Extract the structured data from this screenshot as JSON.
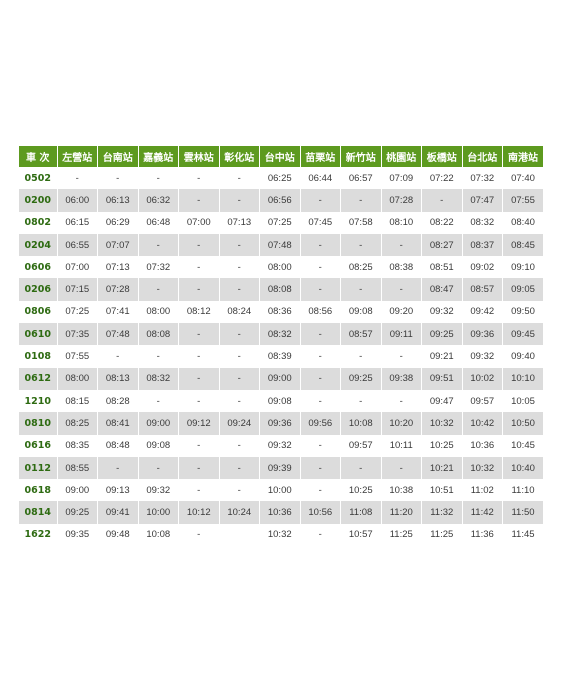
{
  "table": {
    "headers": [
      "車 次",
      "左營站",
      "台南站",
      "嘉義站",
      "雲林站",
      "彰化站",
      "台中站",
      "苗栗站",
      "新竹站",
      "桃園站",
      "板橋站",
      "台北站",
      "南港站"
    ],
    "rows": [
      [
        "0502",
        "-",
        "-",
        "-",
        "-",
        "-",
        "06:25",
        "06:44",
        "06:57",
        "07:09",
        "07:22",
        "07:32",
        "07:40"
      ],
      [
        "0200",
        "06:00",
        "06:13",
        "06:32",
        "-",
        "-",
        "06:56",
        "-",
        "-",
        "07:28",
        "-",
        "07:47",
        "07:55"
      ],
      [
        "0802",
        "06:15",
        "06:29",
        "06:48",
        "07:00",
        "07:13",
        "07:25",
        "07:45",
        "07:58",
        "08:10",
        "08:22",
        "08:32",
        "08:40"
      ],
      [
        "0204",
        "06:55",
        "07:07",
        "-",
        "-",
        "-",
        "07:48",
        "-",
        "-",
        "-",
        "08:27",
        "08:37",
        "08:45"
      ],
      [
        "0606",
        "07:00",
        "07:13",
        "07:32",
        "-",
        "-",
        "08:00",
        "-",
        "08:25",
        "08:38",
        "08:51",
        "09:02",
        "09:10"
      ],
      [
        "0206",
        "07:15",
        "07:28",
        "-",
        "-",
        "-",
        "08:08",
        "-",
        "-",
        "-",
        "08:47",
        "08:57",
        "09:05"
      ],
      [
        "0806",
        "07:25",
        "07:41",
        "08:00",
        "08:12",
        "08:24",
        "08:36",
        "08:56",
        "09:08",
        "09:20",
        "09:32",
        "09:42",
        "09:50"
      ],
      [
        "0610",
        "07:35",
        "07:48",
        "08:08",
        "-",
        "-",
        "08:32",
        "-",
        "08:57",
        "09:11",
        "09:25",
        "09:36",
        "09:45"
      ],
      [
        "0108",
        "07:55",
        "-",
        "-",
        "-",
        "-",
        "08:39",
        "-",
        "-",
        "-",
        "09:21",
        "09:32",
        "09:40"
      ],
      [
        "0612",
        "08:00",
        "08:13",
        "08:32",
        "-",
        "-",
        "09:00",
        "-",
        "09:25",
        "09:38",
        "09:51",
        "10:02",
        "10:10"
      ],
      [
        "1210",
        "08:15",
        "08:28",
        "-",
        "-",
        "-",
        "09:08",
        "-",
        "-",
        "-",
        "09:47",
        "09:57",
        "10:05"
      ],
      [
        "0810",
        "08:25",
        "08:41",
        "09:00",
        "09:12",
        "09:24",
        "09:36",
        "09:56",
        "10:08",
        "10:20",
        "10:32",
        "10:42",
        "10:50"
      ],
      [
        "0616",
        "08:35",
        "08:48",
        "09:08",
        "-",
        "-",
        "09:32",
        "-",
        "09:57",
        "10:11",
        "10:25",
        "10:36",
        "10:45"
      ],
      [
        "0112",
        "08:55",
        "-",
        "-",
        "-",
        "-",
        "09:39",
        "-",
        "-",
        "-",
        "10:21",
        "10:32",
        "10:40"
      ],
      [
        "0618",
        "09:00",
        "09:13",
        "09:32",
        "-",
        "-",
        "10:00",
        "-",
        "10:25",
        "10:38",
        "10:51",
        "11:02",
        "11:10"
      ],
      [
        "0814",
        "09:25",
        "09:41",
        "10:00",
        "10:12",
        "10:24",
        "10:36",
        "10:56",
        "11:08",
        "11:20",
        "11:32",
        "11:42",
        "11:50"
      ],
      [
        "1622",
        "09:35",
        "09:48",
        "10:08",
        "-",
        "",
        "10:32",
        "-",
        "10:57",
        "11:25",
        "11:25",
        "11:36",
        "11:45"
      ]
    ]
  },
  "colors": {
    "header_bg": "#5d9a1f",
    "train_text": "#2e6b12",
    "train_text_extra": "#1a3d8a",
    "stripe_bg": "#dcdcdc"
  }
}
